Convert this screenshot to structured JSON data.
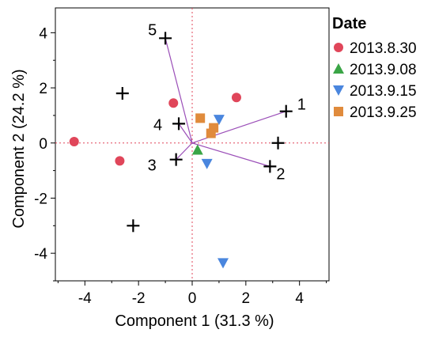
{
  "colors": {
    "2013.8.30": "#e0465a",
    "2013.9.08": "#3aa546",
    "2013.9.15": "#4a86de",
    "2013.9.25": "#e08b3c",
    "cross": "#000000",
    "vector": "#9b4fb8",
    "zero_line": "#e0465a",
    "frame": "#000000"
  },
  "chart_data": {
    "type": "scatter",
    "xlabel": "Component 1  (31.3 %)",
    "ylabel": "Component 2  (24.2 %)",
    "xlim": [
      -5.1,
      5.1
    ],
    "ylim": [
      -5.0,
      4.9
    ],
    "x_ticks": [
      -4,
      -2,
      0,
      2,
      4
    ],
    "y_ticks": [
      4,
      2,
      0,
      -2,
      -4
    ],
    "zero_lines": true,
    "grid": false,
    "legend": {
      "title": "Date",
      "position": "right",
      "entries": [
        {
          "label": "2013.8.30",
          "marker": "circle"
        },
        {
          "label": "2013.9.08",
          "marker": "triangle-up"
        },
        {
          "label": "2013.9.15",
          "marker": "triangle-down"
        },
        {
          "label": "2013.9.25",
          "marker": "square"
        }
      ]
    },
    "series": [
      {
        "name": "2013.8.30",
        "marker": "circle",
        "points": [
          [
            -4.4,
            0.05
          ],
          [
            -2.7,
            -0.65
          ],
          [
            -0.7,
            1.45
          ],
          [
            1.65,
            1.65
          ]
        ]
      },
      {
        "name": "2013.9.08",
        "marker": "triangle-up",
        "points": [
          [
            0.2,
            -0.25
          ]
        ]
      },
      {
        "name": "2013.9.15",
        "marker": "triangle-down",
        "points": [
          [
            1.0,
            0.85
          ],
          [
            0.55,
            -0.75
          ],
          [
            1.15,
            -4.35
          ]
        ]
      },
      {
        "name": "2013.9.25",
        "marker": "square",
        "points": [
          [
            0.3,
            0.9
          ],
          [
            0.8,
            0.55
          ],
          [
            0.7,
            0.35
          ]
        ]
      }
    ],
    "observations": [
      [
        -1.0,
        3.8
      ],
      [
        -2.6,
        1.8
      ],
      [
        -0.5,
        0.7
      ],
      [
        -0.6,
        -0.6
      ],
      [
        -2.2,
        -3.0
      ],
      [
        3.5,
        1.15
      ],
      [
        3.2,
        0.0
      ],
      [
        2.9,
        -0.85
      ]
    ],
    "vectors": [
      {
        "label": "1",
        "x": 3.5,
        "y": 1.15
      },
      {
        "label": "2",
        "x": 2.9,
        "y": -0.85
      },
      {
        "label": "3",
        "x": -0.6,
        "y": -0.6
      },
      {
        "label": "4",
        "x": -0.5,
        "y": 0.7
      },
      {
        "label": "5",
        "x": -1.0,
        "y": 3.8
      }
    ]
  }
}
